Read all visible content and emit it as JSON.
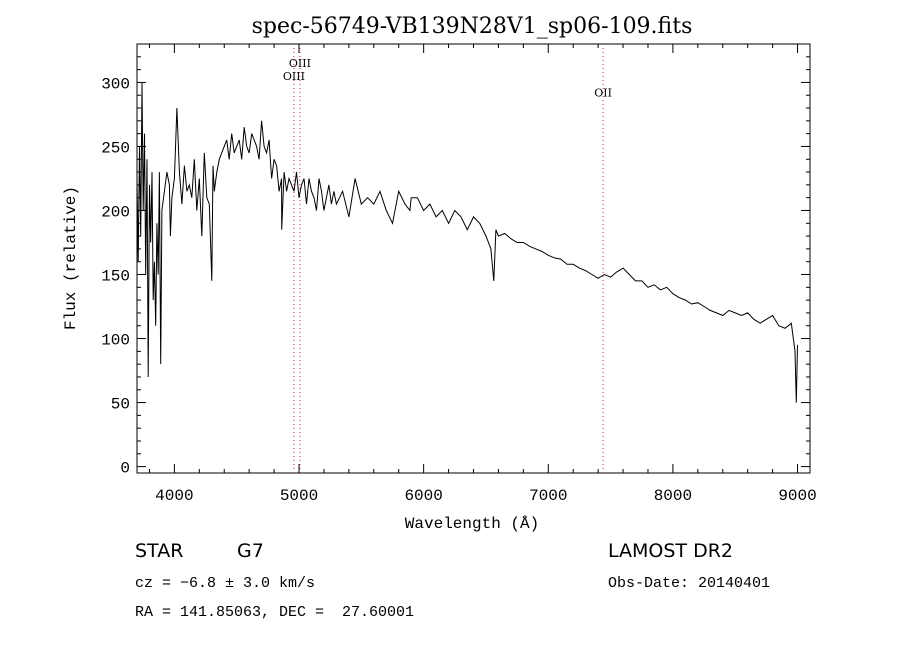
{
  "chart_data": {
    "type": "line",
    "title": "spec-56749-VB139N28V1_sp06-109.fits",
    "xlabel": "Wavelength (Å)",
    "ylabel": "Flux (relative)",
    "xlim": [
      3700,
      9100
    ],
    "ylim": [
      -5,
      330
    ],
    "xticks": [
      4000,
      5000,
      6000,
      7000,
      8000,
      9000
    ],
    "yticks": [
      0,
      50,
      100,
      150,
      200,
      250,
      300
    ],
    "xtick_labels": [
      "4000",
      "5000",
      "6000",
      "7000",
      "8000",
      "9000"
    ],
    "ytick_labels": [
      "0",
      "50",
      "100",
      "150",
      "200",
      "250",
      "300"
    ],
    "grid": false,
    "legend": "none",
    "line_color": "#000000",
    "emission_lines": [
      {
        "label": "OIII",
        "wavelength": 4959,
        "label_y": 302
      },
      {
        "label": "OIII",
        "wavelength": 5007,
        "label_y": 312
      },
      {
        "label": "OII",
        "wavelength": 7440,
        "label_y": 289
      }
    ],
    "series": [
      {
        "x": [
          3700,
          3710,
          3720,
          3730,
          3740,
          3750,
          3760,
          3770,
          3780,
          3790,
          3800,
          3810,
          3820,
          3830,
          3840,
          3850,
          3860,
          3870,
          3880,
          3890,
          3900,
          3920,
          3940,
          3960,
          3968,
          3980,
          4000,
          4020,
          4040,
          4060,
          4080,
          4100,
          4120,
          4140,
          4160,
          4180,
          4200,
          4220,
          4240,
          4260,
          4280,
          4300,
          4310,
          4320,
          4340,
          4360,
          4380,
          4400,
          4420,
          4440,
          4460,
          4480,
          4500,
          4520,
          4540,
          4560,
          4580,
          4600,
          4620,
          4640,
          4660,
          4680,
          4700,
          4720,
          4740,
          4760,
          4780,
          4800,
          4820,
          4840,
          4860,
          4861,
          4880,
          4900,
          4920,
          4940,
          4960,
          4980,
          5000,
          5020,
          5040,
          5060,
          5080,
          5100,
          5120,
          5140,
          5160,
          5180,
          5200,
          5220,
          5240,
          5260,
          5280,
          5300,
          5350,
          5400,
          5450,
          5500,
          5550,
          5600,
          5650,
          5700,
          5750,
          5800,
          5850,
          5890,
          5900,
          5950,
          6000,
          6050,
          6100,
          6150,
          6200,
          6250,
          6300,
          6350,
          6400,
          6450,
          6500,
          6540,
          6563,
          6580,
          6600,
          6650,
          6700,
          6750,
          6800,
          6850,
          6900,
          6950,
          7000,
          7050,
          7100,
          7150,
          7200,
          7250,
          7300,
          7350,
          7400,
          7450,
          7500,
          7550,
          7600,
          7650,
          7700,
          7750,
          7800,
          7850,
          7900,
          7950,
          8000,
          8050,
          8100,
          8150,
          8200,
          8250,
          8300,
          8350,
          8400,
          8450,
          8500,
          8550,
          8600,
          8650,
          8700,
          8750,
          8800,
          8850,
          8900,
          8950,
          8980,
          8990,
          9000
        ],
        "values": [
          225,
          160,
          250,
          180,
          300,
          200,
          260,
          150,
          240,
          70,
          220,
          175,
          230,
          130,
          160,
          110,
          190,
          150,
          230,
          80,
          200,
          215,
          230,
          220,
          180,
          210,
          225,
          280,
          230,
          205,
          235,
          215,
          220,
          210,
          240,
          200,
          225,
          180,
          245,
          210,
          205,
          145,
          235,
          215,
          230,
          240,
          245,
          250,
          255,
          240,
          260,
          245,
          250,
          255,
          240,
          265,
          250,
          245,
          260,
          255,
          250,
          240,
          270,
          250,
          245,
          255,
          225,
          240,
          235,
          215,
          225,
          185,
          230,
          215,
          225,
          220,
          215,
          230,
          210,
          220,
          225,
          205,
          225,
          215,
          210,
          200,
          225,
          215,
          200,
          210,
          220,
          205,
          215,
          205,
          215,
          195,
          225,
          205,
          210,
          205,
          215,
          200,
          190,
          215,
          205,
          200,
          210,
          210,
          200,
          205,
          195,
          200,
          190,
          200,
          195,
          185,
          195,
          190,
          180,
          170,
          145,
          185,
          180,
          182,
          178,
          175,
          175,
          172,
          170,
          168,
          165,
          163,
          162,
          158,
          158,
          155,
          153,
          150,
          147,
          150,
          148,
          152,
          155,
          150,
          145,
          145,
          140,
          142,
          138,
          140,
          135,
          132,
          130,
          127,
          128,
          125,
          122,
          120,
          118,
          122,
          120,
          118,
          120,
          115,
          112,
          115,
          118,
          110,
          108,
          112,
          90,
          50,
          95
        ]
      }
    ]
  },
  "info": {
    "class_label": "STAR",
    "subclass": "G7",
    "survey": "LAMOST DR2",
    "cz": "cz = −6.8 ± 3.0 km/s",
    "obs_date": "Obs-Date: 20140401",
    "coords": "RA = 141.85063, DEC =  27.60001"
  }
}
